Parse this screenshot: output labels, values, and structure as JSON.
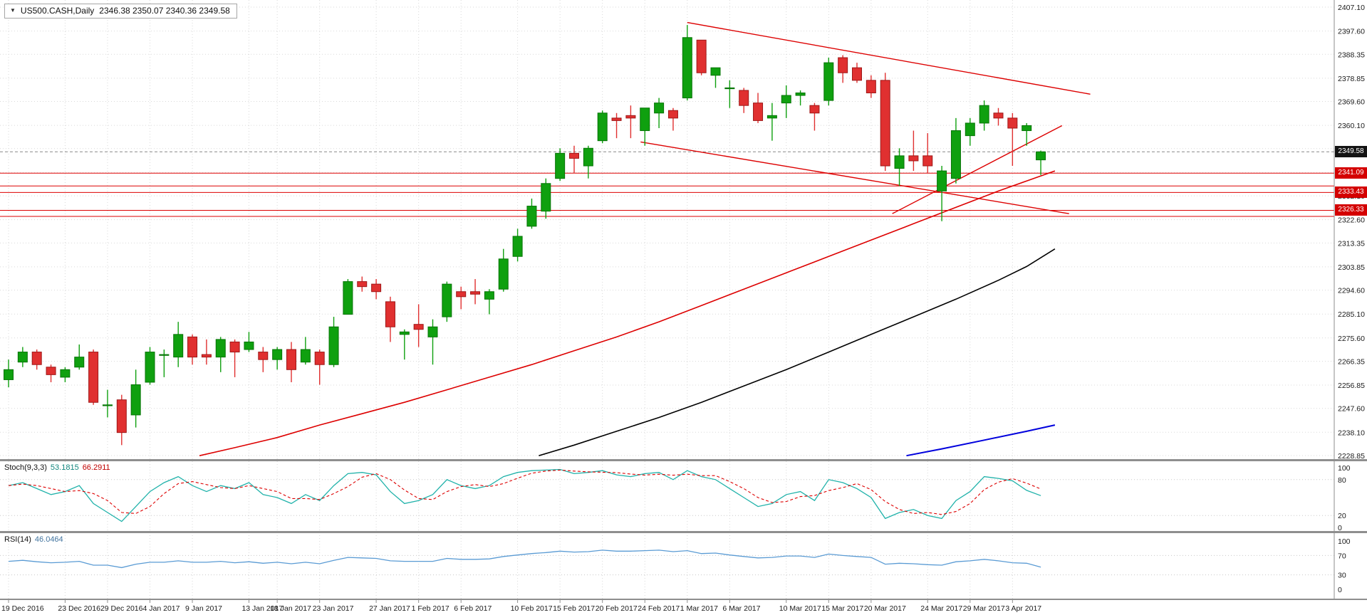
{
  "title_bar": {
    "dropdown_icon": "▼",
    "symbol_period": "US500.CASH,Daily",
    "ohlc_text": "2346.38 2350.07 2340.36 2349.58"
  },
  "colors": {
    "bull": "#0fa00f",
    "bull_border": "#077407",
    "bear": "#e03030",
    "bear_border": "#9e1818",
    "ma_red": "#dd0000",
    "ma_black": "#000000",
    "ma_blue": "#0000dd",
    "trendline": "#dd0000",
    "hline": "#dd0000",
    "grid": "#d9d9d9",
    "level_grid": "#c8c8c8",
    "axis_text": "#1a1a1a",
    "separator": "#8e8e8e",
    "current_price_line": "#888888",
    "current_badge_bg": "#141414",
    "level_badge_bg": "#d40000",
    "badge_text": "#ffffff",
    "stoch_main": "#20b2aa",
    "stoch_signal": "#dd0000",
    "rsi_line": "#5a9bd4"
  },
  "chart_data": {
    "type": "candlestick",
    "symbol": "US500.CASH",
    "timeframe": "Daily",
    "title": "US500.CASH,Daily 2346.38 2350.07 2340.36 2349.58",
    "current_ohlc": {
      "open": 2346.38,
      "high": 2350.07,
      "low": 2340.36,
      "close": 2349.58
    },
    "y_axis": {
      "min": 2228.85,
      "max": 2407.1,
      "tick_labels": [
        "2407.10",
        "2397.60",
        "2388.35",
        "2378.85",
        "2369.60",
        "2360.10",
        "2350.85",
        "2341.35",
        "2332.10",
        "2322.60",
        "2313.35",
        "2303.85",
        "2294.60",
        "2285.10",
        "2275.60",
        "2266.35",
        "2256.85",
        "2247.60",
        "2238.10",
        "2228.85"
      ]
    },
    "x_labels": [
      {
        "t": "19 Dec 2016",
        "i": 0
      },
      {
        "t": "23 Dec 2016",
        "i": 4
      },
      {
        "t": "29 Dec 2016",
        "i": 7
      },
      {
        "t": "4 Jan 2017",
        "i": 10
      },
      {
        "t": "9 Jan 2017",
        "i": 13
      },
      {
        "t": "13 Jan 2017",
        "i": 17
      },
      {
        "t": "18 Jan 2017",
        "i": 19
      },
      {
        "t": "23 Jan 2017",
        "i": 22
      },
      {
        "t": "27 Jan 2017",
        "i": 26
      },
      {
        "t": "1 Feb 2017",
        "i": 29
      },
      {
        "t": "6 Feb 2017",
        "i": 32
      },
      {
        "t": "10 Feb 2017",
        "i": 36
      },
      {
        "t": "15 Feb 2017",
        "i": 39
      },
      {
        "t": "20 Feb 2017",
        "i": 42
      },
      {
        "t": "24 Feb 2017",
        "i": 45
      },
      {
        "t": "1 Mar 2017",
        "i": 48
      },
      {
        "t": "6 Mar 2017",
        "i": 51
      },
      {
        "t": "10 Mar 2017",
        "i": 55
      },
      {
        "t": "15 Mar 2017",
        "i": 58
      },
      {
        "t": "20 Mar 2017",
        "i": 61
      },
      {
        "t": "24 Mar 2017",
        "i": 65
      },
      {
        "t": "29 Mar 2017",
        "i": 68
      },
      {
        "t": "3 Apr 2017",
        "i": 71
      }
    ],
    "candles": [
      [
        2259,
        2267,
        2256,
        2263
      ],
      [
        2266,
        2272,
        2264,
        2270
      ],
      [
        2270,
        2271,
        2263,
        2265
      ],
      [
        2264,
        2265,
        2258,
        2261
      ],
      [
        2260,
        2264,
        2258,
        2263
      ],
      [
        2264,
        2273,
        2263,
        2268
      ],
      [
        2270,
        2271,
        2249,
        2250
      ],
      [
        2249,
        2255,
        2244,
        2249
      ],
      [
        2251,
        2253,
        2233,
        2238
      ],
      [
        2245,
        2263,
        2240,
        2257
      ],
      [
        2258,
        2272,
        2257,
        2270
      ],
      [
        2269,
        2271,
        2260,
        2269
      ],
      [
        2268,
        2282,
        2264,
        2277
      ],
      [
        2276,
        2277,
        2265,
        2268
      ],
      [
        2269,
        2275,
        2265,
        2268
      ],
      [
        2268,
        2276,
        2262,
        2275
      ],
      [
        2274,
        2275,
        2260,
        2270
      ],
      [
        2271,
        2278,
        2270,
        2274
      ],
      [
        2270,
        2272,
        2262,
        2267
      ],
      [
        2267,
        2272,
        2263,
        2271
      ],
      [
        2271,
        2274,
        2258,
        2263
      ],
      [
        2266,
        2276,
        2265,
        2271
      ],
      [
        2270,
        2271,
        2257,
        2265
      ],
      [
        2265,
        2284,
        2264,
        2280
      ],
      [
        2285,
        2299,
        2285,
        2298
      ],
      [
        2298,
        2300,
        2294,
        2296
      ],
      [
        2297,
        2299,
        2291,
        2294
      ],
      [
        2290,
        2292,
        2274,
        2280
      ],
      [
        2277,
        2279,
        2267,
        2278
      ],
      [
        2281,
        2289,
        2272,
        2279
      ],
      [
        2276,
        2283,
        2265,
        2280
      ],
      [
        2284,
        2298,
        2282,
        2297
      ],
      [
        2294,
        2296,
        2287,
        2292
      ],
      [
        2294,
        2299,
        2289,
        2293
      ],
      [
        2291,
        2295,
        2285,
        2294
      ],
      [
        2295,
        2311,
        2294,
        2307
      ],
      [
        2308,
        2319,
        2306,
        2316
      ],
      [
        2320,
        2331,
        2319,
        2328
      ],
      [
        2326,
        2339,
        2323,
        2337
      ],
      [
        2339,
        2351,
        2338,
        2349
      ],
      [
        2349,
        2352,
        2341,
        2347
      ],
      [
        2344,
        2352,
        2339,
        2351
      ],
      [
        2354,
        2366,
        2353,
        2365
      ],
      [
        2363,
        2365,
        2355,
        2362
      ],
      [
        2364,
        2368,
        2355,
        2363
      ],
      [
        2358,
        2367,
        2352,
        2367
      ],
      [
        2365,
        2371,
        2359,
        2369
      ],
      [
        2366,
        2367,
        2358,
        2363
      ],
      [
        2371,
        2400,
        2370,
        2395
      ],
      [
        2394,
        2394,
        2380,
        2381
      ],
      [
        2380,
        2383,
        2375,
        2383
      ],
      [
        2375,
        2378,
        2367,
        2375
      ],
      [
        2374,
        2375,
        2365,
        2368
      ],
      [
        2369,
        2373,
        2361,
        2362
      ],
      [
        2363,
        2369,
        2354,
        2364
      ],
      [
        2369,
        2376,
        2363,
        2372
      ],
      [
        2372,
        2374,
        2368,
        2373
      ],
      [
        2368,
        2369,
        2358,
        2365
      ],
      [
        2370,
        2387,
        2368,
        2385
      ],
      [
        2387,
        2388,
        2377,
        2381
      ],
      [
        2383,
        2385,
        2377,
        2378
      ],
      [
        2378,
        2380,
        2371,
        2373
      ],
      [
        2378,
        2381,
        2342,
        2344
      ],
      [
        2343,
        2351,
        2336,
        2348
      ],
      [
        2348,
        2358,
        2342,
        2346
      ],
      [
        2348,
        2357,
        2341,
        2344
      ],
      [
        2334,
        2344,
        2322,
        2342
      ],
      [
        2339,
        2363,
        2337,
        2358
      ],
      [
        2356,
        2363,
        2352,
        2361
      ],
      [
        2361,
        2370,
        2358,
        2368
      ],
      [
        2365,
        2367,
        2360,
        2363
      ],
      [
        2363,
        2365,
        2344,
        2359
      ],
      [
        2358,
        2361,
        2352,
        2360
      ],
      [
        2346.38,
        2350.07,
        2340.36,
        2349.58
      ]
    ],
    "price_markers": {
      "current": 2349.58,
      "levels": [
        2341.09,
        2333.43,
        2326.33
      ],
      "unlabeled_levels": [
        2336.0,
        2323.9
      ]
    },
    "overlays": {
      "ma_red": [
        [
          13.5,
          2228.8
        ],
        [
          16,
          2232
        ],
        [
          19,
          2236
        ],
        [
          22,
          2241
        ],
        [
          25,
          2245.5
        ],
        [
          28,
          2250
        ],
        [
          31,
          2255
        ],
        [
          34,
          2260
        ],
        [
          37,
          2265
        ],
        [
          40,
          2270.5
        ],
        [
          43,
          2276
        ],
        [
          46,
          2282
        ],
        [
          49,
          2288.5
        ],
        [
          52,
          2295
        ],
        [
          55,
          2301.5
        ],
        [
          58,
          2308
        ],
        [
          61,
          2314.5
        ],
        [
          64,
          2321
        ],
        [
          67,
          2327.5
        ],
        [
          70,
          2334
        ],
        [
          72,
          2338
        ],
        [
          74,
          2342
        ]
      ],
      "ma_black": [
        [
          37.5,
          2228.8
        ],
        [
          40,
          2233
        ],
        [
          43,
          2238.5
        ],
        [
          46,
          2244
        ],
        [
          49,
          2250
        ],
        [
          52,
          2256.5
        ],
        [
          55,
          2263
        ],
        [
          58,
          2270
        ],
        [
          61,
          2277
        ],
        [
          64,
          2284
        ],
        [
          67,
          2291
        ],
        [
          70,
          2298.5
        ],
        [
          72,
          2304
        ],
        [
          74,
          2311
        ]
      ],
      "ma_blue": [
        [
          63.5,
          2228.8
        ],
        [
          66,
          2231.5
        ],
        [
          69,
          2235
        ],
        [
          72,
          2238.5
        ],
        [
          74,
          2241
        ]
      ],
      "trendlines": [
        [
          [
            48,
            2401
          ],
          [
            76.5,
            2372.5
          ]
        ],
        [
          [
            44.7,
            2353.5
          ],
          [
            75,
            2325
          ]
        ],
        [
          [
            62.5,
            2325
          ],
          [
            74.5,
            2360
          ]
        ]
      ]
    },
    "indicators": [
      {
        "id": "stoch",
        "name": "Stoch(9,3,3)",
        "value_main": "53.1815",
        "value_signal": "66.2911",
        "scale_labels": [
          100,
          80,
          20,
          0
        ],
        "levels": [
          80,
          20
        ],
        "range": [
          0,
          100
        ],
        "k": [
          70,
          75,
          65,
          55,
          60,
          70,
          40,
          25,
          10,
          35,
          60,
          75,
          85,
          70,
          60,
          70,
          65,
          75,
          55,
          50,
          40,
          55,
          45,
          70,
          90,
          92,
          88,
          60,
          40,
          45,
          55,
          80,
          70,
          65,
          70,
          85,
          92,
          95,
          96,
          97,
          90,
          92,
          95,
          88,
          85,
          90,
          92,
          80,
          95,
          85,
          80,
          65,
          50,
          35,
          40,
          55,
          60,
          45,
          80,
          75,
          65,
          50,
          15,
          25,
          30,
          20,
          15,
          45,
          60,
          85,
          82,
          78,
          62,
          53.2
        ]
      },
      {
        "id": "rsi",
        "name": "RSI(14)",
        "value_main": "46.0464",
        "scale_labels": [
          100,
          70,
          30,
          0
        ],
        "levels": [
          70,
          30
        ],
        "range": [
          0,
          100
        ],
        "values": [
          58,
          60,
          57,
          55,
          56,
          58,
          50,
          50,
          45,
          52,
          56,
          56,
          59,
          56,
          56,
          58,
          55,
          57,
          54,
          56,
          53,
          56,
          53,
          60,
          66,
          65,
          64,
          59,
          58,
          58,
          58,
          64,
          62,
          62,
          63,
          68,
          71,
          74,
          76,
          79,
          77,
          78,
          81,
          79,
          79,
          80,
          81,
          78,
          80,
          74,
          75,
          71,
          68,
          65,
          66,
          69,
          69,
          66,
          73,
          70,
          68,
          66,
          52,
          54,
          53,
          51,
          50,
          57,
          59,
          62,
          59,
          55,
          54,
          46
        ]
      }
    ]
  }
}
